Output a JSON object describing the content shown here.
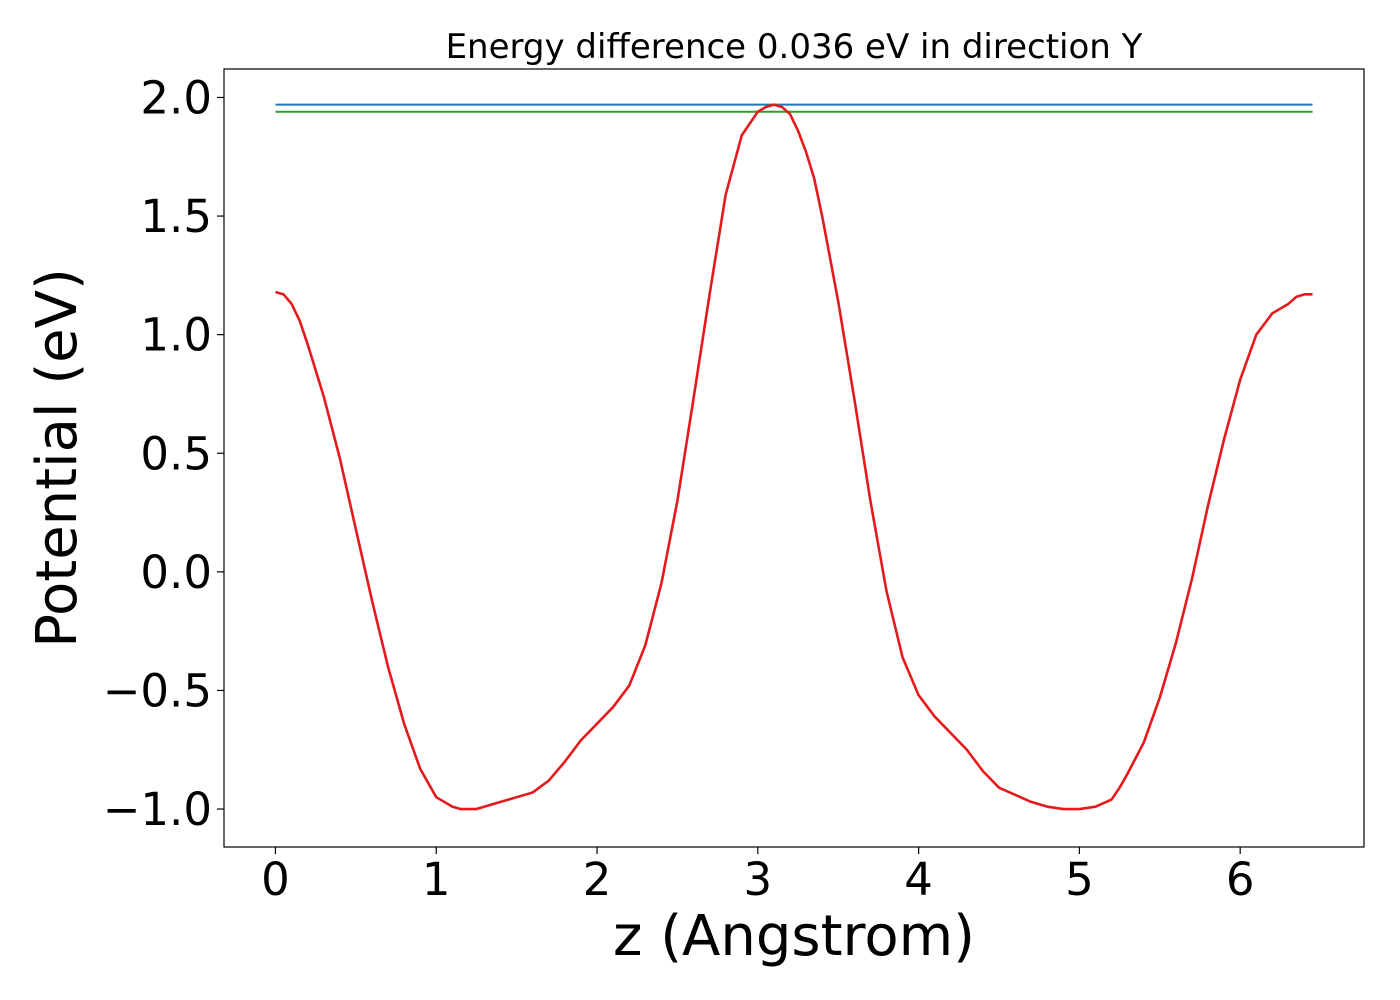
{
  "chart_data": {
    "type": "line",
    "title": "Energy difference 0.036 eV in direction Y",
    "xlabel": "z (Angstrom)",
    "ylabel": "Potential (eV)",
    "xlim": [
      -0.32,
      6.77
    ],
    "ylim": [
      -1.16,
      2.12
    ],
    "xticks": [
      0,
      1,
      2,
      3,
      4,
      5,
      6
    ],
    "xtick_labels": [
      "0",
      "1",
      "2",
      "3",
      "4",
      "5",
      "6"
    ],
    "yticks": [
      -1.0,
      -0.5,
      0.0,
      0.5,
      1.0,
      1.5,
      2.0
    ],
    "ytick_labels": [
      "−1.0",
      "−0.5",
      "0.0",
      "0.5",
      "1.0",
      "1.5",
      "2.0"
    ],
    "grid": false,
    "series": [
      {
        "color": "#1f77b4",
        "x": [
          0,
          6.45
        ],
        "y": [
          1.97,
          1.97
        ]
      },
      {
        "color": "#2ca02c",
        "x": [
          0,
          6.45
        ],
        "y": [
          1.94,
          1.94
        ]
      },
      {
        "color": "#e41a1c",
        "x": [
          0.0,
          0.05,
          0.1,
          0.15,
          0.2,
          0.3,
          0.4,
          0.5,
          0.6,
          0.7,
          0.8,
          0.9,
          1.0,
          1.1,
          1.15,
          1.2,
          1.25,
          1.3,
          1.4,
          1.5,
          1.6,
          1.7,
          1.8,
          1.9,
          2.0,
          2.1,
          2.2,
          2.3,
          2.4,
          2.5,
          2.6,
          2.7,
          2.8,
          2.9,
          3.0,
          3.05,
          3.1,
          3.15,
          3.2,
          3.25,
          3.3,
          3.35,
          3.4,
          3.5,
          3.6,
          3.7,
          3.8,
          3.9,
          4.0,
          4.1,
          4.2,
          4.3,
          4.4,
          4.5,
          4.6,
          4.7,
          4.8,
          4.9,
          5.0,
          5.1,
          5.2,
          5.25,
          5.3,
          5.4,
          5.5,
          5.6,
          5.7,
          5.8,
          5.9,
          6.0,
          6.1,
          6.2,
          6.3,
          6.35,
          6.4,
          6.45
        ],
        "y": [
          1.18,
          1.17,
          1.13,
          1.06,
          0.96,
          0.74,
          0.48,
          0.18,
          -0.12,
          -0.4,
          -0.64,
          -0.83,
          -0.95,
          -0.99,
          -1.0,
          -1.0,
          -1.0,
          -0.99,
          -0.97,
          -0.95,
          -0.93,
          -0.88,
          -0.8,
          -0.71,
          -0.64,
          -0.57,
          -0.48,
          -0.31,
          -0.05,
          0.3,
          0.73,
          1.17,
          1.59,
          1.84,
          1.94,
          1.96,
          1.97,
          1.96,
          1.93,
          1.86,
          1.77,
          1.66,
          1.5,
          1.14,
          0.73,
          0.3,
          -0.08,
          -0.36,
          -0.52,
          -0.61,
          -0.68,
          -0.75,
          -0.84,
          -0.91,
          -0.94,
          -0.97,
          -0.99,
          -1.0,
          -1.0,
          -0.99,
          -0.96,
          -0.91,
          -0.85,
          -0.72,
          -0.53,
          -0.3,
          -0.03,
          0.28,
          0.56,
          0.81,
          1.0,
          1.09,
          1.13,
          1.16,
          1.17,
          1.17
        ]
      }
    ]
  }
}
